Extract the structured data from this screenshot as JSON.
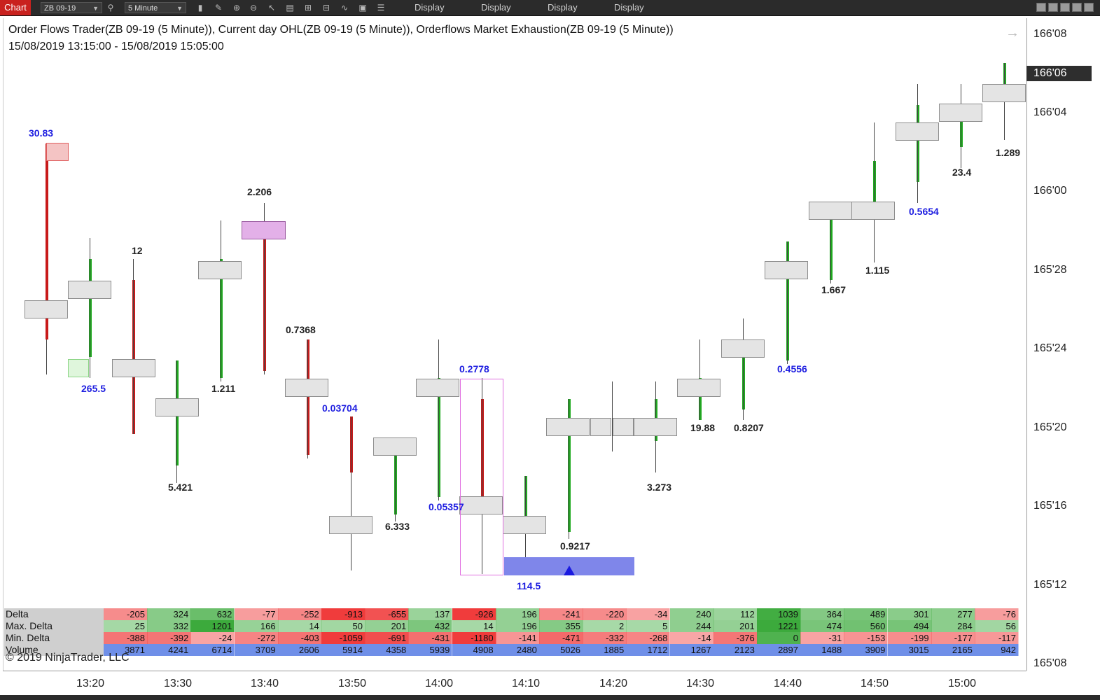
{
  "toolbar": {
    "chart_tab": "Chart",
    "instrument": "ZB 09-19",
    "interval": "5 Minute",
    "display_buttons": [
      "Display",
      "Display",
      "Display",
      "Display"
    ]
  },
  "chart": {
    "title_line1": "Order Flows Trader(ZB 09-19 (5 Minute)), Current day OHL(ZB 09-19 (5 Minute)),  Orderflows Market Exhaustion(ZB 09-19 (5 Minute))",
    "title_line2": "15/08/2019 13:15:00 - 15/08/2019 15:05:00",
    "current_price": "166'06",
    "copyright": "© 2019 NinjaTrader, LLC"
  },
  "price_axis": [
    "166'08",
    "166'04",
    "166'00",
    "165'28",
    "165'24",
    "165'20",
    "165'16",
    "165'12",
    "165'08"
  ],
  "time_axis": [
    "13:20",
    "13:30",
    "13:40",
    "13:50",
    "14:00",
    "14:10",
    "14:20",
    "14:30",
    "14:40",
    "14:50",
    "15:00"
  ],
  "bar_stats": [
    "30.83",
    "265.5",
    "12",
    "5.421",
    "1.211",
    "2.206",
    "0.7368",
    "0.03704",
    "6.333",
    "0.05357",
    "0.2778",
    "114.5",
    "0.9217",
    "3.273",
    "19.88",
    "0.8207",
    "0.4556",
    "1.667",
    "1.115",
    "0.5654",
    "23.4",
    "1.289"
  ],
  "indicators": {
    "labels": [
      "Delta",
      "Max. Delta",
      "Min. Delta",
      "Volume"
    ],
    "delta": [
      "-205",
      "324",
      "632",
      "-77",
      "-252",
      "-913",
      "-655",
      "137",
      "-926",
      "196",
      "-241",
      "-220",
      "-34",
      "240",
      "112",
      "1039",
      "364",
      "489",
      "301",
      "277",
      "-76"
    ],
    "max_delta": [
      "25",
      "332",
      "1201",
      "166",
      "14",
      "50",
      "201",
      "432",
      "14",
      "196",
      "355",
      "2",
      "5",
      "244",
      "201",
      "1221",
      "474",
      "560",
      "494",
      "284",
      "56"
    ],
    "min_delta": [
      "-388",
      "-392",
      "-24",
      "-272",
      "-403",
      "-1059",
      "-691",
      "-431",
      "-1180",
      "-141",
      "-471",
      "-332",
      "-268",
      "-14",
      "-376",
      "0",
      "-31",
      "-153",
      "-199",
      "-177",
      "-117"
    ],
    "volume": [
      "3871",
      "4241",
      "6714",
      "3709",
      "2606",
      "5914",
      "4358",
      "5939",
      "4908",
      "2480",
      "5026",
      "1885",
      "1712",
      "1267",
      "2123",
      "2897",
      "1488",
      "3909",
      "3015",
      "2165",
      "942"
    ]
  },
  "colors": {
    "up": "#1faa1f",
    "down": "#c81a1a",
    "positive": "#4fb14f",
    "negative": "#f05050",
    "volume": "#6f8fe8"
  }
}
